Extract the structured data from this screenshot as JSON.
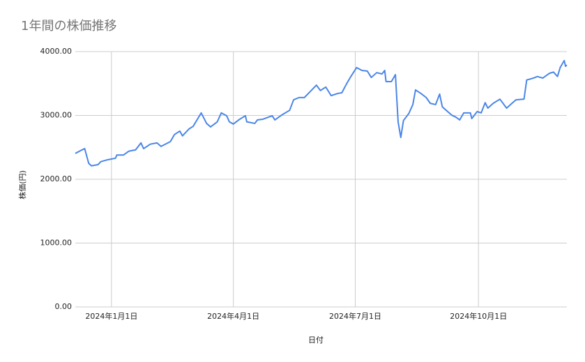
{
  "chart_data": {
    "type": "line",
    "title": "1年間の株価推移",
    "x_label": "日付",
    "y_label": "株価(円)",
    "grid": true,
    "xlim": [
      "2023-12-05",
      "2024-12-06"
    ],
    "xticks": [
      {
        "value": "2024-01-01",
        "label": "2024年1月1日"
      },
      {
        "value": "2024-04-01",
        "label": "2024年4月1日"
      },
      {
        "value": "2024-07-01",
        "label": "2024年7月1日"
      },
      {
        "value": "2024-10-01",
        "label": "2024年10月1日"
      }
    ],
    "ylim": [
      0,
      4000
    ],
    "yticks": [
      {
        "value": 0,
        "label": "0.00"
      },
      {
        "value": 1000,
        "label": "1000.00"
      },
      {
        "value": 2000,
        "label": "2000.00"
      },
      {
        "value": 3000,
        "label": "3000.00"
      },
      {
        "value": 4000,
        "label": "4000.00"
      }
    ],
    "x": [
      "2023-12-05",
      "2023-12-10",
      "2023-12-12",
      "2023-12-15",
      "2023-12-17",
      "2023-12-22",
      "2023-12-24",
      "2023-12-29",
      "2024-01-04",
      "2024-01-05",
      "2024-01-10",
      "2024-01-14",
      "2024-01-19",
      "2024-01-23",
      "2024-01-25",
      "2024-01-30",
      "2024-02-04",
      "2024-02-07",
      "2024-02-14",
      "2024-02-17",
      "2024-02-21",
      "2024-02-23",
      "2024-02-28",
      "2024-03-02",
      "2024-03-08",
      "2024-03-12",
      "2024-03-15",
      "2024-03-20",
      "2024-03-23",
      "2024-03-27",
      "2024-03-29",
      "2024-04-01",
      "2024-04-05",
      "2024-04-10",
      "2024-04-11",
      "2024-04-17",
      "2024-04-19",
      "2024-04-23",
      "2024-04-30",
      "2024-05-02",
      "2024-05-07",
      "2024-05-13",
      "2024-05-16",
      "2024-05-20",
      "2024-05-24",
      "2024-05-28",
      "2024-06-02",
      "2024-06-05",
      "2024-06-09",
      "2024-06-13",
      "2024-06-18",
      "2024-06-21",
      "2024-06-24",
      "2024-06-27",
      "2024-07-02",
      "2024-07-06",
      "2024-07-10",
      "2024-07-13",
      "2024-07-17",
      "2024-07-21",
      "2024-07-23",
      "2024-07-24",
      "2024-07-28",
      "2024-07-31",
      "2024-08-02",
      "2024-08-04",
      "2024-08-06",
      "2024-08-10",
      "2024-08-13",
      "2024-08-15",
      "2024-08-19",
      "2024-08-23",
      "2024-08-26",
      "2024-08-30",
      "2024-09-02",
      "2024-09-04",
      "2024-09-08",
      "2024-09-11",
      "2024-09-14",
      "2024-09-17",
      "2024-09-20",
      "2024-09-25",
      "2024-09-26",
      "2024-09-30",
      "2024-10-03",
      "2024-10-06",
      "2024-10-08",
      "2024-10-12",
      "2024-10-17",
      "2024-10-22",
      "2024-10-26",
      "2024-10-29",
      "2024-11-04",
      "2024-11-06",
      "2024-11-11",
      "2024-11-14",
      "2024-11-18",
      "2024-11-23",
      "2024-11-26",
      "2024-11-29",
      "2024-12-01",
      "2024-12-04",
      "2024-12-05",
      "2024-12-06"
    ],
    "series": [
      {
        "name": "株価",
        "color": "#4a86e8",
        "values": [
          2405,
          2460,
          2480,
          2250,
          2210,
          2230,
          2275,
          2305,
          2330,
          2380,
          2380,
          2440,
          2460,
          2570,
          2480,
          2550,
          2570,
          2515,
          2590,
          2700,
          2755,
          2680,
          2790,
          2830,
          3040,
          2875,
          2820,
          2900,
          3040,
          2995,
          2900,
          2865,
          2930,
          2995,
          2900,
          2875,
          2930,
          2940,
          2995,
          2930,
          3005,
          3080,
          3245,
          3280,
          3280,
          3365,
          3475,
          3390,
          3445,
          3310,
          3345,
          3355,
          3475,
          3585,
          3750,
          3705,
          3695,
          3595,
          3670,
          3650,
          3705,
          3530,
          3530,
          3640,
          2900,
          2655,
          2920,
          3030,
          3170,
          3400,
          3345,
          3280,
          3190,
          3170,
          3335,
          3135,
          3060,
          3005,
          2975,
          2930,
          3040,
          3040,
          2950,
          3060,
          3040,
          3200,
          3115,
          3190,
          3255,
          3115,
          3190,
          3245,
          3255,
          3555,
          3585,
          3610,
          3585,
          3660,
          3680,
          3610,
          3750,
          3860,
          3770,
          3790
        ]
      }
    ]
  }
}
